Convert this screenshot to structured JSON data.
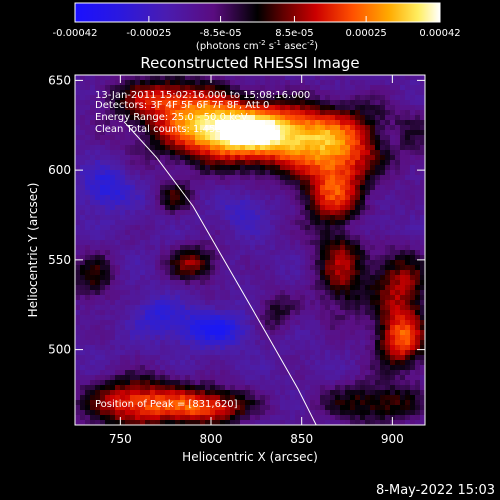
{
  "colorbar": {
    "ticks": [
      {
        "label": "-0.00042",
        "value": -0.00042
      },
      {
        "label": "-0.00025",
        "value": -0.00025
      },
      {
        "label": "-8.5e-05",
        "value": -8.5e-05
      },
      {
        "label": "8.5e-05",
        "value": 8.5e-05
      },
      {
        "label": "0.00025",
        "value": 0.00025
      },
      {
        "label": "0.00042",
        "value": 0.00042
      }
    ],
    "range": [
      -0.00042,
      0.00042
    ],
    "units_main": "(photons cm",
    "units_exp1": "-2",
    "units_mid": " s",
    "units_exp2": "-1",
    "units_end": " asec",
    "units_exp3": "-2",
    "units_close": ")"
  },
  "plot": {
    "title": "Reconstructed RHESSI Image",
    "xlabel": "Heliocentric X (arcsec)",
    "ylabel": "Heliocentric Y (arcsec)",
    "xlim": [
      725,
      918
    ],
    "ylim": [
      458,
      653
    ],
    "xticks": [
      {
        "label": "750",
        "value": 750
      },
      {
        "label": "800",
        "value": 800
      },
      {
        "label": "850",
        "value": 850
      },
      {
        "label": "900",
        "value": 900
      }
    ],
    "yticks": [
      {
        "label": "500",
        "value": 500
      },
      {
        "label": "550",
        "value": 550
      },
      {
        "label": "600",
        "value": 600
      },
      {
        "label": "650",
        "value": 650
      }
    ],
    "info_lines": [
      "13-Jan-2011 15:02:16.000 to 15:08:16.000",
      "Detectors: 3F 4F 5F 6F 7F 8F, Att 0",
      "Energy Range: 25.0 - 50.0 keV",
      "Clean    Total counts: 1.45E+04"
    ],
    "peak_label": "Position of Peak = [831,620]",
    "limb_points": [
      [
        752,
        627
      ],
      [
        770,
        607
      ],
      [
        790,
        580
      ],
      [
        810,
        545
      ],
      [
        830,
        510
      ],
      [
        848,
        478
      ],
      [
        858,
        458
      ]
    ]
  },
  "footer": {
    "date": "8-May-2022 15:03"
  }
}
